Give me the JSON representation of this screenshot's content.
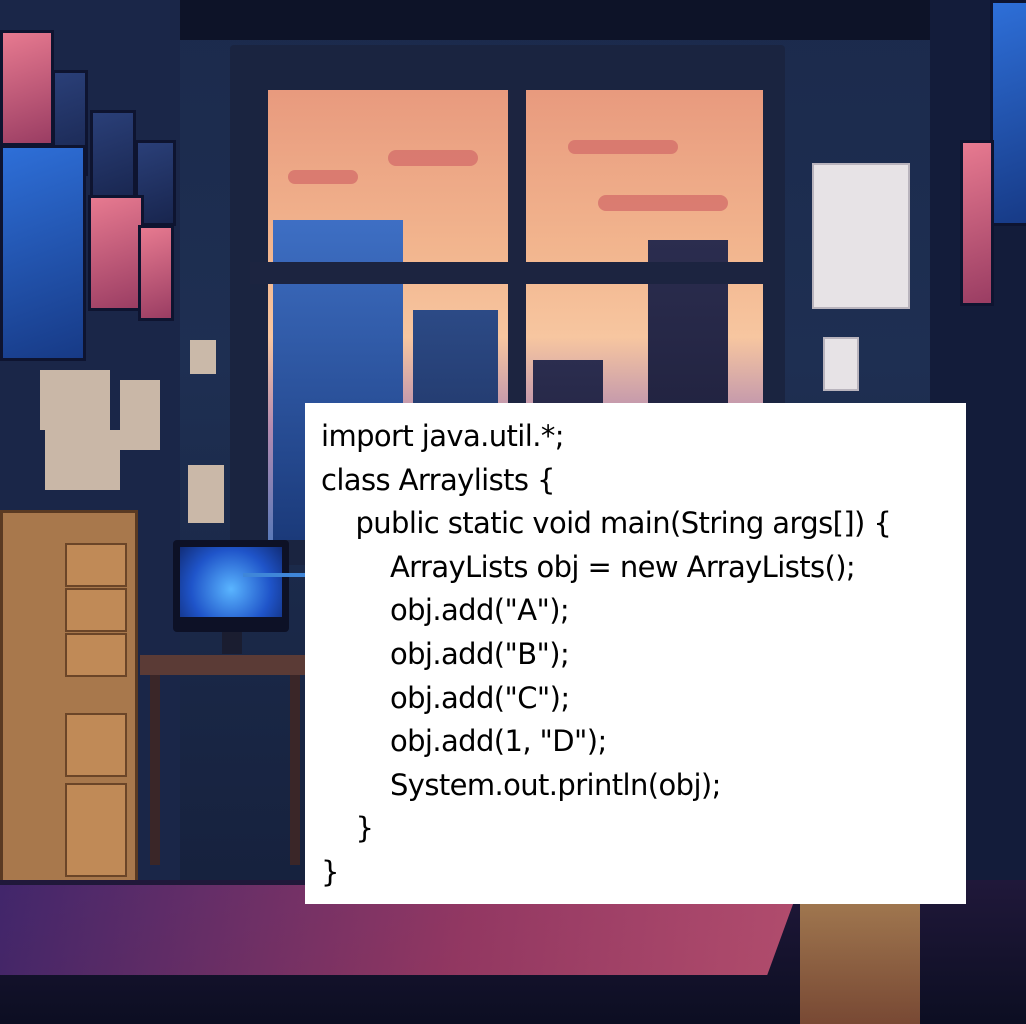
{
  "code": {
    "lines": [
      "import java.util.*;",
      "class Arraylists {",
      "    public static void main(String args[]) {",
      "        ArrayLists obj = new ArrayLists();",
      "        obj.add(\"A\");",
      "        obj.add(\"B\");",
      "        obj.add(\"C\");",
      "        obj.add(1, \"D\");",
      "        System.out.println(obj);",
      "    }",
      "}"
    ]
  },
  "colors": {
    "arrow": "#3f86d8",
    "panel_background": "#ffffff",
    "code_text": "#000000"
  },
  "icons": {
    "pointer": "arrow-right-icon"
  }
}
